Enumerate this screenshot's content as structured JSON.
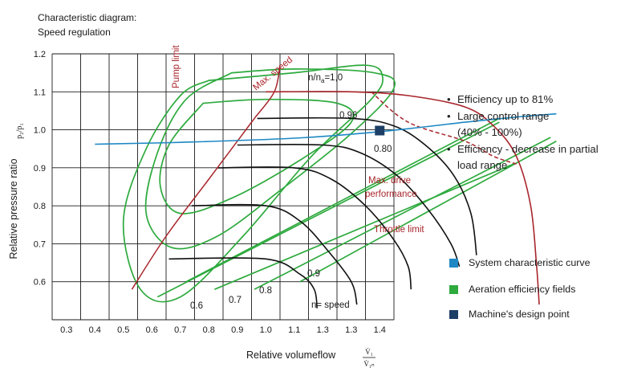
{
  "header": {
    "title_line1": "Characteristic diagram:",
    "title_line2": "Speed regulation"
  },
  "bullets": [
    "Efficiency up to 81%",
    "Large control range",
    "(40% - 100%)",
    "Efficiency - decrease in partial",
    "load range"
  ],
  "bullet_marks": [
    "•",
    "•",
    "",
    "•",
    ""
  ],
  "legend": [
    {
      "label": "System characteristic curve",
      "color": "#1e88c4"
    },
    {
      "label": "Aeration efficiency fields",
      "color": "#2eaa3e"
    },
    {
      "label": "Machine's design point",
      "color": "#1d3f66"
    }
  ],
  "chart_data": {
    "type": "line",
    "xlabel": "Relative volumeflow",
    "xlabel_symbol": {
      "num": "V̇₁",
      "den": "V̇₁ₙ"
    },
    "ylabel": "Relative pressure ratio",
    "ylabel_symbol": "p₂/p₁",
    "x_ticks": [
      "0.3",
      "0.4",
      "0.5",
      "0.6",
      "0.7",
      "0.8",
      "0.9",
      "1.0",
      "1.1",
      "1.3",
      "1.3",
      "1.4"
    ],
    "y_ticks": [
      "0.6",
      "0.7",
      "0.8",
      "0.9",
      "1.0",
      "1.1",
      "1.2"
    ],
    "ylim": [
      0.5,
      1.2
    ],
    "grid": true,
    "colors": {
      "speed_curves": "#111111",
      "limits": "#a8252b",
      "system_curve": "#1e88c4",
      "efficiency": "#2eaa3e",
      "design_point": "#1d3f66"
    },
    "annotations": {
      "pump_limit": "Pump limit",
      "max_speed": "Max. speed",
      "n_ratio": "n/n",
      "n_ratio_sub": "a",
      "n_ratio_value": "=1,0",
      "max_drive_1": "Max. drive",
      "max_drive_2": "performance",
      "throttle_limit": "Throttle limit",
      "n_speed": "n= speed"
    },
    "speed_curve_labels": [
      "0.6",
      "0.7",
      "0.8",
      "0.9"
    ],
    "efficiency_labels": [
      "0.96",
      "0.80"
    ],
    "speed_curves": [
      {
        "points": [
          [
            0.16,
            0.66
          ],
          [
            0.5,
            0.66
          ],
          [
            0.62,
            0.62
          ],
          [
            0.67,
            0.58
          ],
          [
            0.68,
            0.53
          ]
        ]
      },
      {
        "points": [
          [
            0.24,
            0.8
          ],
          [
            0.5,
            0.8
          ],
          [
            0.62,
            0.76
          ],
          [
            0.72,
            0.68
          ],
          [
            0.8,
            0.6
          ],
          [
            0.82,
            0.54
          ]
        ]
      },
      {
        "points": [
          [
            0.33,
            0.9
          ],
          [
            0.6,
            0.9
          ],
          [
            0.73,
            0.87
          ],
          [
            0.85,
            0.8
          ],
          [
            0.95,
            0.71
          ],
          [
            1.0,
            0.64
          ],
          [
            1.01,
            0.58
          ]
        ]
      },
      {
        "points": [
          [
            0.4,
            0.96
          ],
          [
            0.7,
            0.96
          ],
          [
            0.83,
            0.94
          ],
          [
            0.96,
            0.88
          ],
          [
            1.07,
            0.79
          ],
          [
            1.15,
            0.7
          ],
          [
            1.18,
            0.64
          ]
        ]
      },
      {
        "points": [
          [
            0.47,
            1.03
          ],
          [
            0.8,
            1.03
          ],
          [
            0.95,
            1.01
          ],
          [
            1.06,
            0.96
          ],
          [
            1.16,
            0.88
          ],
          [
            1.22,
            0.78
          ],
          [
            1.24,
            0.67
          ]
        ]
      }
    ],
    "pump_limit_curve": {
      "points": [
        [
          0.03,
          0.58
        ],
        [
          0.15,
          0.72
        ],
        [
          0.3,
          0.87
        ],
        [
          0.42,
          0.99
        ],
        [
          0.46,
          1.03
        ],
        [
          0.53,
          1.1
        ],
        [
          0.55,
          1.17
        ]
      ]
    },
    "max_speed_curve": {
      "points": [
        [
          0.5,
          1.1
        ],
        [
          0.8,
          1.1
        ],
        [
          1.0,
          1.09
        ],
        [
          1.2,
          1.06
        ],
        [
          1.3,
          1.01
        ],
        [
          1.38,
          0.93
        ],
        [
          1.43,
          0.8
        ],
        [
          1.45,
          0.65
        ],
        [
          1.46,
          0.54
        ]
      ]
    },
    "max_drive_line": {
      "points": [
        [
          0.87,
          1.1
        ],
        [
          1.0,
          1.02
        ],
        [
          1.2,
          0.97
        ],
        [
          1.3,
          0.93
        ],
        [
          1.38,
          0.91
        ]
      ]
    },
    "system_curve": {
      "points": [
        [
          -0.1,
          0.962
        ],
        [
          0.2,
          0.967
        ],
        [
          0.6,
          0.978
        ],
        [
          0.9,
          0.995
        ],
        [
          1.2,
          1.02
        ],
        [
          1.4,
          1.035
        ],
        [
          1.52,
          1.042
        ]
      ]
    },
    "efficiency_loops": [
      {
        "points": [
          [
            0.3,
            1.13
          ],
          [
            0.2,
            1.09
          ],
          [
            0.08,
            0.95
          ],
          [
            0.0,
            0.76
          ],
          [
            0.06,
            0.58
          ],
          [
            0.2,
            0.56
          ],
          [
            0.42,
            0.72
          ],
          [
            0.66,
            0.93
          ],
          [
            0.87,
            1.08
          ],
          [
            0.91,
            1.14
          ],
          [
            0.85,
            1.17
          ],
          [
            0.6,
            1.15
          ],
          [
            0.3,
            1.13
          ]
        ]
      },
      {
        "points": [
          [
            0.38,
            1.15
          ],
          [
            0.22,
            1.08
          ],
          [
            0.12,
            0.94
          ],
          [
            0.08,
            0.78
          ],
          [
            0.17,
            0.69
          ],
          [
            0.33,
            0.72
          ],
          [
            0.55,
            0.84
          ],
          [
            0.8,
            0.99
          ],
          [
            0.95,
            1.11
          ],
          [
            0.88,
            1.15
          ],
          [
            0.6,
            1.16
          ],
          [
            0.38,
            1.15
          ]
        ]
      },
      {
        "points": [
          [
            0.28,
            1.07
          ],
          [
            0.16,
            0.96
          ],
          [
            0.13,
            0.85
          ],
          [
            0.2,
            0.78
          ],
          [
            0.38,
            0.82
          ],
          [
            0.62,
            0.92
          ],
          [
            0.8,
            1.02
          ],
          [
            0.75,
            1.07
          ],
          [
            0.5,
            1.08
          ],
          [
            0.28,
            1.07
          ]
        ]
      }
    ],
    "efficiency_lines": [
      {
        "points": [
          [
            0.12,
            0.56
          ],
          [
            1.32,
            1.02
          ]
        ]
      },
      {
        "points": [
          [
            0.22,
            0.6
          ],
          [
            1.32,
            1.03
          ]
        ]
      },
      {
        "points": [
          [
            0.32,
            0.58
          ],
          [
            1.37,
            0.91
          ]
        ]
      },
      {
        "points": [
          [
            0.46,
            0.58
          ],
          [
            1.5,
            0.98
          ]
        ]
      },
      {
        "points": [
          [
            0.62,
            0.6
          ],
          [
            1.52,
            0.97
          ]
        ]
      }
    ],
    "design_point": {
      "x": 0.9,
      "y": 0.998
    }
  }
}
